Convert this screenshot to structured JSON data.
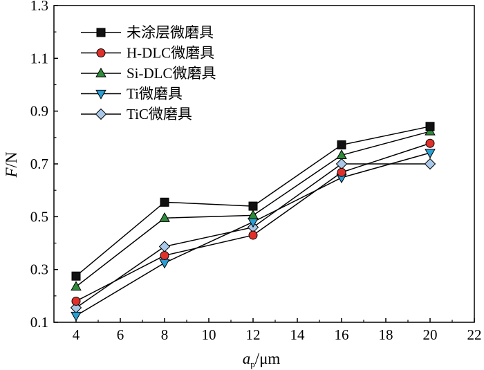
{
  "chart_data": {
    "type": "line",
    "title": "",
    "xlabel": {
      "main": "a",
      "sub": "p",
      "rest": "/μm"
    },
    "ylabel": {
      "italic": "F",
      "rest": "/N"
    },
    "xlim": [
      3,
      22
    ],
    "ylim": [
      0.1,
      1.3
    ],
    "xticks": [
      4,
      6,
      8,
      10,
      12,
      14,
      16,
      18,
      20,
      22
    ],
    "yticks": [
      0.1,
      0.3,
      0.5,
      0.7,
      0.9,
      1.1,
      1.3
    ],
    "grid": false,
    "legend_position": "top-left",
    "x": [
      4,
      8,
      12,
      16,
      20
    ],
    "series": [
      {
        "name": "未涂层微磨具",
        "marker": "square",
        "color": "#111111",
        "values": [
          0.275,
          0.555,
          0.54,
          0.772,
          0.842
        ]
      },
      {
        "name": "H-DLC微磨具",
        "marker": "circle",
        "color": "#e0302a",
        "values": [
          0.18,
          0.353,
          0.43,
          0.668,
          0.778
        ]
      },
      {
        "name": "Si-DLC微磨具",
        "marker": "triangle-up",
        "color": "#2f8a3a",
        "values": [
          0.235,
          0.495,
          0.505,
          0.733,
          0.823
        ]
      },
      {
        "name": "Ti微磨具",
        "marker": "triangle-down",
        "color": "#2a9fd6",
        "values": [
          0.125,
          0.325,
          0.48,
          0.648,
          0.742
        ]
      },
      {
        "name": "TiC微磨具",
        "marker": "diamond",
        "color": "#aac8e8",
        "values": [
          0.155,
          0.387,
          0.46,
          0.7,
          0.7
        ]
      }
    ]
  }
}
